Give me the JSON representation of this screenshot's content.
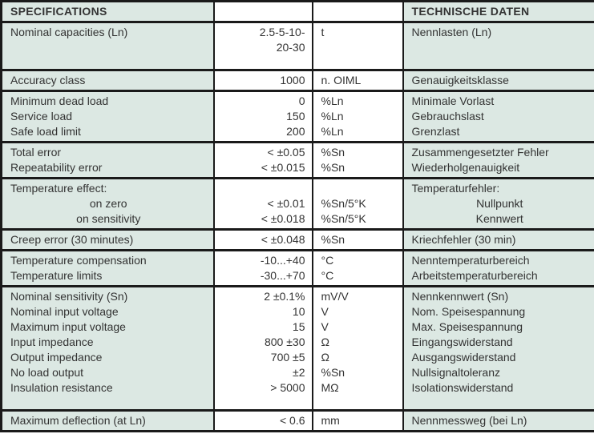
{
  "colors": {
    "cell_green": "#dce8e3",
    "cell_white": "#ffffff",
    "border": "#1a1a1a",
    "text": "#333333"
  },
  "table": {
    "header": {
      "specifications": "SPECIFICATIONS",
      "value_col": "",
      "unit_col": "",
      "technische_daten": "TECHNISCHE DATEN"
    },
    "rows": [
      {
        "spec": [
          "Nominal capacities (Ln)"
        ],
        "value": [
          "2.5-5-10-",
          "20-30"
        ],
        "unit": [
          "t"
        ],
        "german": [
          "Nennlasten (Ln)"
        ]
      },
      {
        "spec": [
          "Accuracy class"
        ],
        "value": [
          "1000"
        ],
        "unit": [
          "n. OIML"
        ],
        "german": [
          "Genauigkeitsklasse"
        ]
      },
      {
        "spec": [
          "Minimum dead load",
          "Service load",
          "Safe load limit"
        ],
        "value": [
          "0",
          "150",
          "200"
        ],
        "unit": [
          "%Ln",
          "%Ln",
          "%Ln"
        ],
        "german": [
          "Minimale Vorlast",
          "Gebrauchslast",
          "Grenzlast"
        ]
      },
      {
        "spec": [
          "Total error",
          "Repeatability error"
        ],
        "value": [
          "< ±0.05",
          "< ±0.015"
        ],
        "unit": [
          "%Sn",
          "%Sn"
        ],
        "german": [
          "Zusammengesetzter Fehler",
          "Wiederholgenauigkeit"
        ]
      },
      {
        "spec": [
          "Temperature effect:",
          "on zero",
          "on sensitivity"
        ],
        "value": [
          "",
          "< ±0.01",
          "< ±0.018"
        ],
        "unit": [
          "",
          "%Sn/5°K",
          "%Sn/5°K"
        ],
        "german": [
          "Temperaturfehler:",
          "Nullpunkt",
          "Kennwert"
        ]
      },
      {
        "spec": [
          "Creep error (30 minutes)"
        ],
        "value": [
          "< ±0.048"
        ],
        "unit": [
          "%Sn"
        ],
        "german": [
          "Kriechfehler (30 min)"
        ]
      },
      {
        "spec": [
          "Temperature compensation",
          "Temperature limits"
        ],
        "value": [
          "-10...+40",
          "-30...+70"
        ],
        "unit": [
          "°C",
          "°C"
        ],
        "german": [
          "Nenntemperaturbereich",
          "Arbeitstemperaturbereich"
        ]
      },
      {
        "spec": [
          "Nominal sensitivity (Sn)",
          "Nominal input voltage",
          "Maximum input voltage",
          "Input impedance",
          "Output impedance",
          "No load output",
          "Insulation resistance"
        ],
        "value": [
          "2 ±0.1%",
          "10",
          "15",
          "800 ±30",
          "700 ±5",
          "±2",
          "> 5000"
        ],
        "unit": [
          "mV/V",
          "V",
          "V",
          "Ω",
          "Ω",
          "%Sn",
          "MΩ"
        ],
        "german": [
          "Nennkennwert (Sn)",
          "Nom. Speisespannung",
          "Max. Speisespannung",
          "Eingangswiderstand",
          "Ausgangswiderstand",
          "Nullsignaltoleranz",
          "Isolationswiderstand"
        ]
      },
      {
        "spec": [
          "Maximum deflection (at Ln)"
        ],
        "value": [
          "< 0.6"
        ],
        "unit": [
          "mm"
        ],
        "german": [
          "Nennmessweg (bei Ln)"
        ]
      }
    ]
  }
}
